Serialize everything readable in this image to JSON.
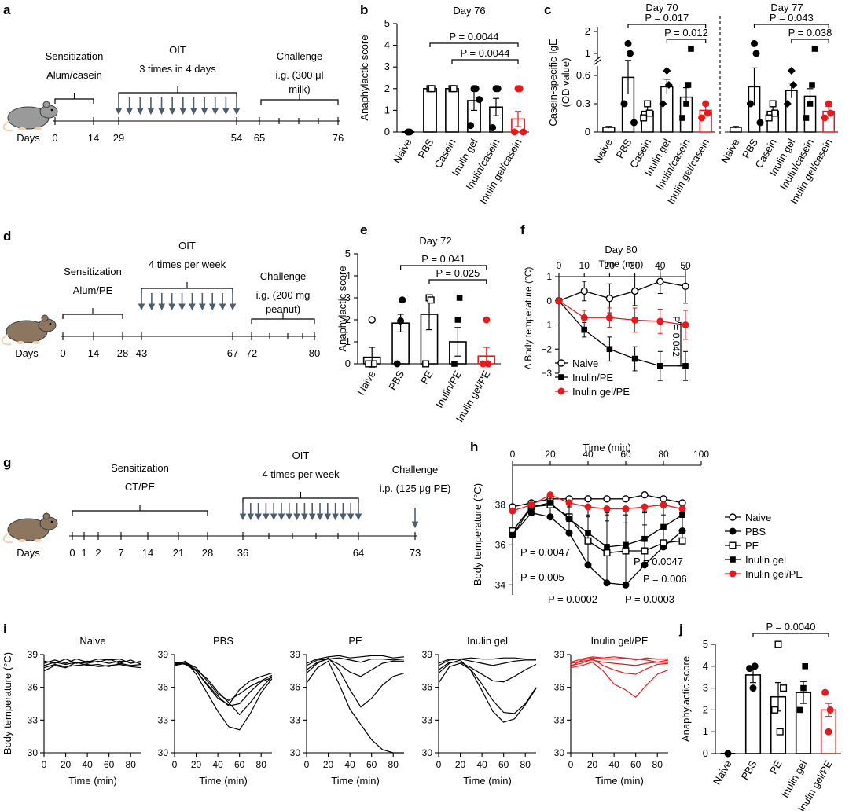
{
  "colors": {
    "black": "#000000",
    "red": "#e41a1c",
    "arrow": "#4d5d6e",
    "mouse_grey": "#9a9a9a",
    "mouse_tan": "#8c7660",
    "mouse_feet": "#f1d1b0"
  },
  "panel_labels": [
    "a",
    "b",
    "c",
    "d",
    "e",
    "f",
    "g",
    "h",
    "i",
    "j"
  ],
  "timelines": {
    "a": {
      "days_label": "Days",
      "stages": [
        {
          "title": "Sensitization",
          "sub": "Alum/casein"
        },
        {
          "title": "OIT",
          "sub": "3 times in 4 days"
        },
        {
          "title": "Challenge",
          "sub": "i.g. (300 μl",
          "sub2": "milk)"
        }
      ],
      "ticks": [
        "0",
        "14",
        "29",
        "54",
        "65",
        "76"
      ],
      "arrow_count": 12
    },
    "d": {
      "days_label": "Days",
      "stages": [
        {
          "title": "Sensitization",
          "sub": "Alum/PE"
        },
        {
          "title": "OIT",
          "sub": "4 times per week"
        },
        {
          "title": "Challenge",
          "sub": "i.g. (200 mg",
          "sub2": "peanut)"
        }
      ],
      "ticks": [
        "0",
        "14",
        "28",
        "43",
        "67",
        "72",
        "80"
      ],
      "arrow_count": 10
    },
    "g": {
      "days_label": "Days",
      "stages": [
        {
          "title": "Sensitization",
          "sub": "CT/PE"
        },
        {
          "title": "OIT",
          "sub": "4 times per week"
        },
        {
          "title": "Challenge",
          "sub": "i.p. (125 μg PE)"
        }
      ],
      "ticks": [
        "0",
        "1",
        "2",
        "7",
        "14",
        "21",
        "28",
        "36",
        "64",
        "73"
      ],
      "arrow_count": 16
    }
  },
  "chart_data": [
    {
      "id": "b",
      "type": "bar",
      "title": "Day 76",
      "ylabel": "Anaphylactic score",
      "ylim": [
        0,
        5
      ],
      "yticks": [
        "0",
        "1",
        "2",
        "3",
        "4",
        "5"
      ],
      "categories": [
        "Naive",
        "PBS",
        "Casein",
        "Inulin gel",
        "Inulin/casein",
        "Inulin gel/casein"
      ],
      "values": [
        0,
        2,
        2,
        1.45,
        1.15,
        0.6
      ],
      "errors": [
        0,
        0,
        0.08,
        0.45,
        0.4,
        0.35
      ],
      "annotations": [
        {
          "text": "P = 0.0044",
          "from": 1,
          "to": 5
        },
        {
          "text": "P = 0.0044",
          "from": 2,
          "to": 5
        }
      ]
    },
    {
      "id": "c",
      "type": "bar",
      "ylabel": "Casein-specific IgE",
      "ylabel2": "(OD value)",
      "yticks": [
        "0",
        "0.3",
        "0.6",
        "1",
        "2"
      ],
      "groups": [
        {
          "title": "Day 70",
          "categories": [
            "Naive",
            "PBS",
            "Casein",
            "Inulin gel",
            "Inulin/casein",
            "Inulin gel/casein"
          ],
          "values": [
            0.05,
            0.58,
            0.22,
            0.48,
            0.37,
            0.23
          ],
          "errors": [
            0.01,
            0.18,
            0.05,
            0.08,
            0.1,
            0.05
          ],
          "annotations": [
            {
              "text": "P = 0.017",
              "from": 1,
              "to": 5
            },
            {
              "text": "P = 0.012",
              "from": 3,
              "to": 5
            }
          ]
        },
        {
          "title": "Day 77",
          "categories": [
            "Naive",
            "PBS",
            "Casein",
            "Inulin gel",
            "Inulin/casein",
            "Inulin gel/casein"
          ],
          "values": [
            0.05,
            0.48,
            0.22,
            0.44,
            0.38,
            0.22
          ],
          "errors": [
            0.01,
            0.2,
            0.05,
            0.08,
            0.08,
            0.05
          ],
          "annotations": [
            {
              "text": "P = 0.043",
              "from": 1,
              "to": 5
            },
            {
              "text": "P = 0.038",
              "from": 3,
              "to": 5
            }
          ]
        }
      ]
    },
    {
      "id": "e",
      "type": "bar",
      "title": "Day 72",
      "ylabel": "Anaphylactic score",
      "ylim": [
        0,
        5
      ],
      "yticks": [
        "0",
        "1",
        "2",
        "3",
        "4",
        "5"
      ],
      "categories": [
        "Naive",
        "PBS",
        "PE",
        "Inulin/PE",
        "Inulin gel/PE"
      ],
      "values": [
        0.3,
        1.85,
        2.25,
        1.0,
        0.35
      ],
      "errors": [
        0.45,
        0.4,
        0.7,
        0.65,
        0.4
      ],
      "annotations": [
        {
          "text": "P = 0.041",
          "from": 1,
          "to": 4
        },
        {
          "text": "P = 0.025",
          "from": 2,
          "to": 4
        }
      ]
    },
    {
      "id": "f",
      "type": "line",
      "title": "Day 80",
      "xlabel": "Time (min)",
      "ylabel": "Δ Body temperature (°C)",
      "xlim": [
        0,
        50
      ],
      "ylim": [
        -3,
        1
      ],
      "xticks": [
        "0",
        "10",
        "20",
        "30",
        "40",
        "50"
      ],
      "yticks": [
        "1",
        "0",
        "−1",
        "−2",
        "−3"
      ],
      "series": [
        {
          "name": "Naive",
          "x": [
            0,
            10,
            20,
            30,
            40,
            50
          ],
          "y": [
            0,
            0.4,
            0.1,
            0.4,
            0.8,
            0.6
          ],
          "err": [
            0,
            0.4,
            0.6,
            0.6,
            0.5,
            0.7
          ]
        },
        {
          "name": "Inulin/PE",
          "x": [
            0,
            10,
            20,
            30,
            40,
            50
          ],
          "y": [
            0,
            -1.2,
            -2.0,
            -2.4,
            -2.7,
            -2.7
          ],
          "err": [
            0,
            0.3,
            0.5,
            0.5,
            0.6,
            0.6
          ]
        },
        {
          "name": "Inulin gel/PE",
          "x": [
            0,
            10,
            20,
            30,
            40,
            50
          ],
          "y": [
            0,
            -0.7,
            -0.7,
            -0.8,
            -0.85,
            -1.0
          ],
          "err": [
            0,
            0.3,
            0.4,
            0.5,
            0.5,
            0.6
          ]
        }
      ],
      "annotations": [
        {
          "text": "P = 0.042"
        }
      ]
    },
    {
      "id": "h",
      "type": "line",
      "xlabel": "Time (min)",
      "ylabel": "Body temperature (°C)",
      "xlim": [
        0,
        100
      ],
      "ylim": [
        33.5,
        39
      ],
      "xticks": [
        "0",
        "20",
        "40",
        "60",
        "80",
        "100"
      ],
      "yticks": [
        "34",
        "36",
        "38"
      ],
      "series": [
        {
          "name": "Naive",
          "x": [
            0,
            10,
            20,
            30,
            40,
            50,
            60,
            70,
            80,
            90
          ],
          "y": [
            37.9,
            38.1,
            38.3,
            38.3,
            38.3,
            38.3,
            38.3,
            38.5,
            38.3,
            38.1
          ],
          "err": [
            0,
            0,
            0,
            0,
            0,
            0,
            0,
            0,
            0,
            0
          ]
        },
        {
          "name": "PBS",
          "x": [
            0,
            10,
            20,
            30,
            40,
            50,
            60,
            70,
            80,
            90
          ],
          "y": [
            36.5,
            37.6,
            37.4,
            36.6,
            35.0,
            34.1,
            34.0,
            35.0,
            35.9,
            36.7
          ],
          "err": [
            0,
            0.5,
            0.7,
            1.3,
            2.4,
            3.5,
            3.7,
            2.7,
            1.6,
            1.0
          ]
        },
        {
          "name": "PE",
          "x": [
            0,
            10,
            20,
            30,
            40,
            50,
            60,
            70,
            80,
            90
          ],
          "y": [
            36.7,
            37.9,
            38.0,
            37.4,
            36.2,
            35.6,
            35.7,
            35.7,
            36.1,
            36.2
          ],
          "err": [
            0,
            0.3,
            0.3,
            0.6,
            1.3,
            1.6,
            1.4,
            1.3,
            0.9,
            0.6
          ]
        },
        {
          "name": "Inulin gel",
          "x": [
            0,
            10,
            20,
            30,
            40,
            50,
            60,
            70,
            80,
            90
          ],
          "y": [
            36.5,
            37.9,
            38.1,
            37.3,
            36.6,
            35.9,
            36.0,
            36.3,
            36.9,
            37.5
          ],
          "err": [
            0,
            0.3,
            0.3,
            0.6,
            1.3,
            1.6,
            1.5,
            1.3,
            1.0,
            0.5
          ]
        },
        {
          "name": "Inulin gel/PE",
          "x": [
            0,
            10,
            20,
            30,
            40,
            50,
            60,
            70,
            80,
            90
          ],
          "y": [
            37.7,
            38.0,
            38.5,
            38.1,
            37.9,
            37.8,
            37.8,
            37.9,
            38.0,
            37.8
          ],
          "err": [
            0,
            0,
            0,
            0,
            0,
            0,
            0,
            0,
            0,
            0
          ]
        }
      ],
      "annotations": [
        "P = 0.0047",
        "P = 0.005",
        "P = 0.0002",
        "P = 0.0003",
        "P = 0.006",
        "P = 0.0047"
      ]
    },
    {
      "id": "i",
      "type": "line",
      "ylabel": "Body temperature (°C)",
      "xlabel": "Time (min)",
      "xlim": [
        0,
        90
      ],
      "ylim": [
        30,
        39
      ],
      "xticks": [
        "0",
        "20",
        "40",
        "60",
        "80"
      ],
      "yticks": [
        "30",
        "33",
        "36",
        "39"
      ],
      "panels": [
        {
          "title": "Naive",
          "color": "black",
          "series": [
            [
              37.5,
              38,
              37.8,
              38.3,
              38,
              38.1,
              37.9,
              38.2,
              38.0,
              38.1
            ],
            [
              38,
              38.3,
              38.1,
              38.3,
              38.2,
              38.4,
              38.2,
              38.4,
              38.3,
              38.3
            ],
            [
              38.2,
              38.5,
              38.2,
              38.6,
              38.3,
              38.6,
              38.5,
              38.6,
              38.2,
              38.4
            ],
            [
              38.4,
              38.2,
              38.6,
              38.2,
              38.4,
              38.3,
              38.6,
              38.2,
              38.5,
              38.1
            ],
            [
              37.8,
              38.1,
              37.9,
              38.0,
              38.1,
              37.9,
              38.0,
              38.1,
              37.9,
              37.8
            ]
          ]
        },
        {
          "title": "PBS",
          "color": "black",
          "series": [
            [
              38,
              38.4,
              37.2,
              35.5,
              33.8,
              32.4,
              32.1,
              33.6,
              35.5,
              36.8
            ],
            [
              38.2,
              38.3,
              37.6,
              36.8,
              35.6,
              34.6,
              33.5,
              34.6,
              35.9,
              37.0
            ],
            [
              38.3,
              38.1,
              37.5,
              36.3,
              35.2,
              34.3,
              34.5,
              35.6,
              36.5,
              36.9
            ],
            [
              38.1,
              38.3,
              37.8,
              36.6,
              35.4,
              34.8,
              35.4,
              36.1,
              36.6,
              37.1
            ],
            [
              38.0,
              38.2,
              37.5,
              36.2,
              35.0,
              34.4,
              35.8,
              36.6,
              37.0,
              37.3
            ]
          ]
        },
        {
          "title": "PE",
          "color": "black",
          "series": [
            [
              36.4,
              37.8,
              38.4,
              36.3,
              34.0,
              32.6,
              31.2,
              30.3,
              30.0,
              30.0
            ],
            [
              37.3,
              38.2,
              38.7,
              37.6,
              35.8,
              34.2,
              35.0,
              36.2,
              37.0,
              37.3
            ],
            [
              37.6,
              38.3,
              38.6,
              38.1,
              37.4,
              37.0,
              37.6,
              38.2,
              38.4,
              38.4
            ],
            [
              38.0,
              38.5,
              38.6,
              38.7,
              38.5,
              38.3,
              38.6,
              38.6,
              38.5,
              38.6
            ],
            [
              38.2,
              38.6,
              38.8,
              38.9,
              38.7,
              38.8,
              38.9,
              38.9,
              38.7,
              38.8
            ]
          ]
        },
        {
          "title": "Inulin gel",
          "color": "black",
          "series": [
            [
              36.4,
              37.9,
              38.2,
              37.6,
              36.3,
              34.8,
              33.7,
              33.6,
              34.5,
              36.0
            ],
            [
              37.3,
              38.2,
              38.5,
              37.5,
              35.7,
              33.8,
              32.8,
              33.1,
              34.4,
              35.9
            ],
            [
              37.6,
              38.3,
              38.3,
              37.8,
              37.2,
              36.6,
              36.5,
              37.0,
              37.6,
              38.1
            ],
            [
              38.0,
              38.5,
              38.6,
              38.4,
              38.2,
              38.0,
              38.2,
              38.4,
              38.5,
              38.5
            ],
            [
              38.2,
              38.6,
              38.6,
              38.7,
              38.6,
              38.6,
              38.7,
              38.7,
              38.6,
              38.6
            ]
          ]
        },
        {
          "title": "Inulin gel/PE",
          "color": "red",
          "series": [
            [
              37.8,
              38.0,
              38.3,
              37.5,
              36.3,
              35.8,
              35.1,
              36.2,
              37.2,
              37.6
            ],
            [
              38.0,
              38.2,
              38.6,
              38.0,
              37.6,
              37.3,
              37.2,
              37.7,
              38.1,
              38.2
            ],
            [
              38.2,
              38.4,
              38.5,
              38.3,
              38.2,
              38.1,
              38.0,
              38.2,
              38.3,
              38.3
            ],
            [
              37.9,
              38.5,
              38.7,
              38.6,
              38.6,
              38.7,
              38.6,
              38.5,
              38.3,
              38.5
            ],
            [
              38.3,
              38.6,
              38.8,
              38.7,
              38.8,
              38.7,
              38.5,
              38.7,
              38.6,
              38.6
            ]
          ]
        }
      ]
    },
    {
      "id": "j",
      "type": "bar",
      "ylabel": "Anaphylactic score",
      "ylim": [
        0,
        5
      ],
      "yticks": [
        "0",
        "1",
        "2",
        "3",
        "4",
        "5"
      ],
      "categories": [
        "Naive",
        "PBS",
        "PE",
        "Inulin gel",
        "Inulin gel/PE"
      ],
      "values": [
        0,
        3.6,
        2.6,
        2.8,
        2.0
      ],
      "errors": [
        0,
        0.35,
        0.65,
        0.5,
        0.3
      ],
      "annotations": [
        {
          "text": "P = 0.0040",
          "from": 1,
          "to": 4
        }
      ]
    }
  ],
  "legend_f": [
    "Naive",
    "Inulin/PE",
    "Inulin gel/PE"
  ],
  "legend_h": [
    "Naive",
    "PBS",
    "PE",
    "Inulin gel",
    "Inulin gel/PE"
  ]
}
